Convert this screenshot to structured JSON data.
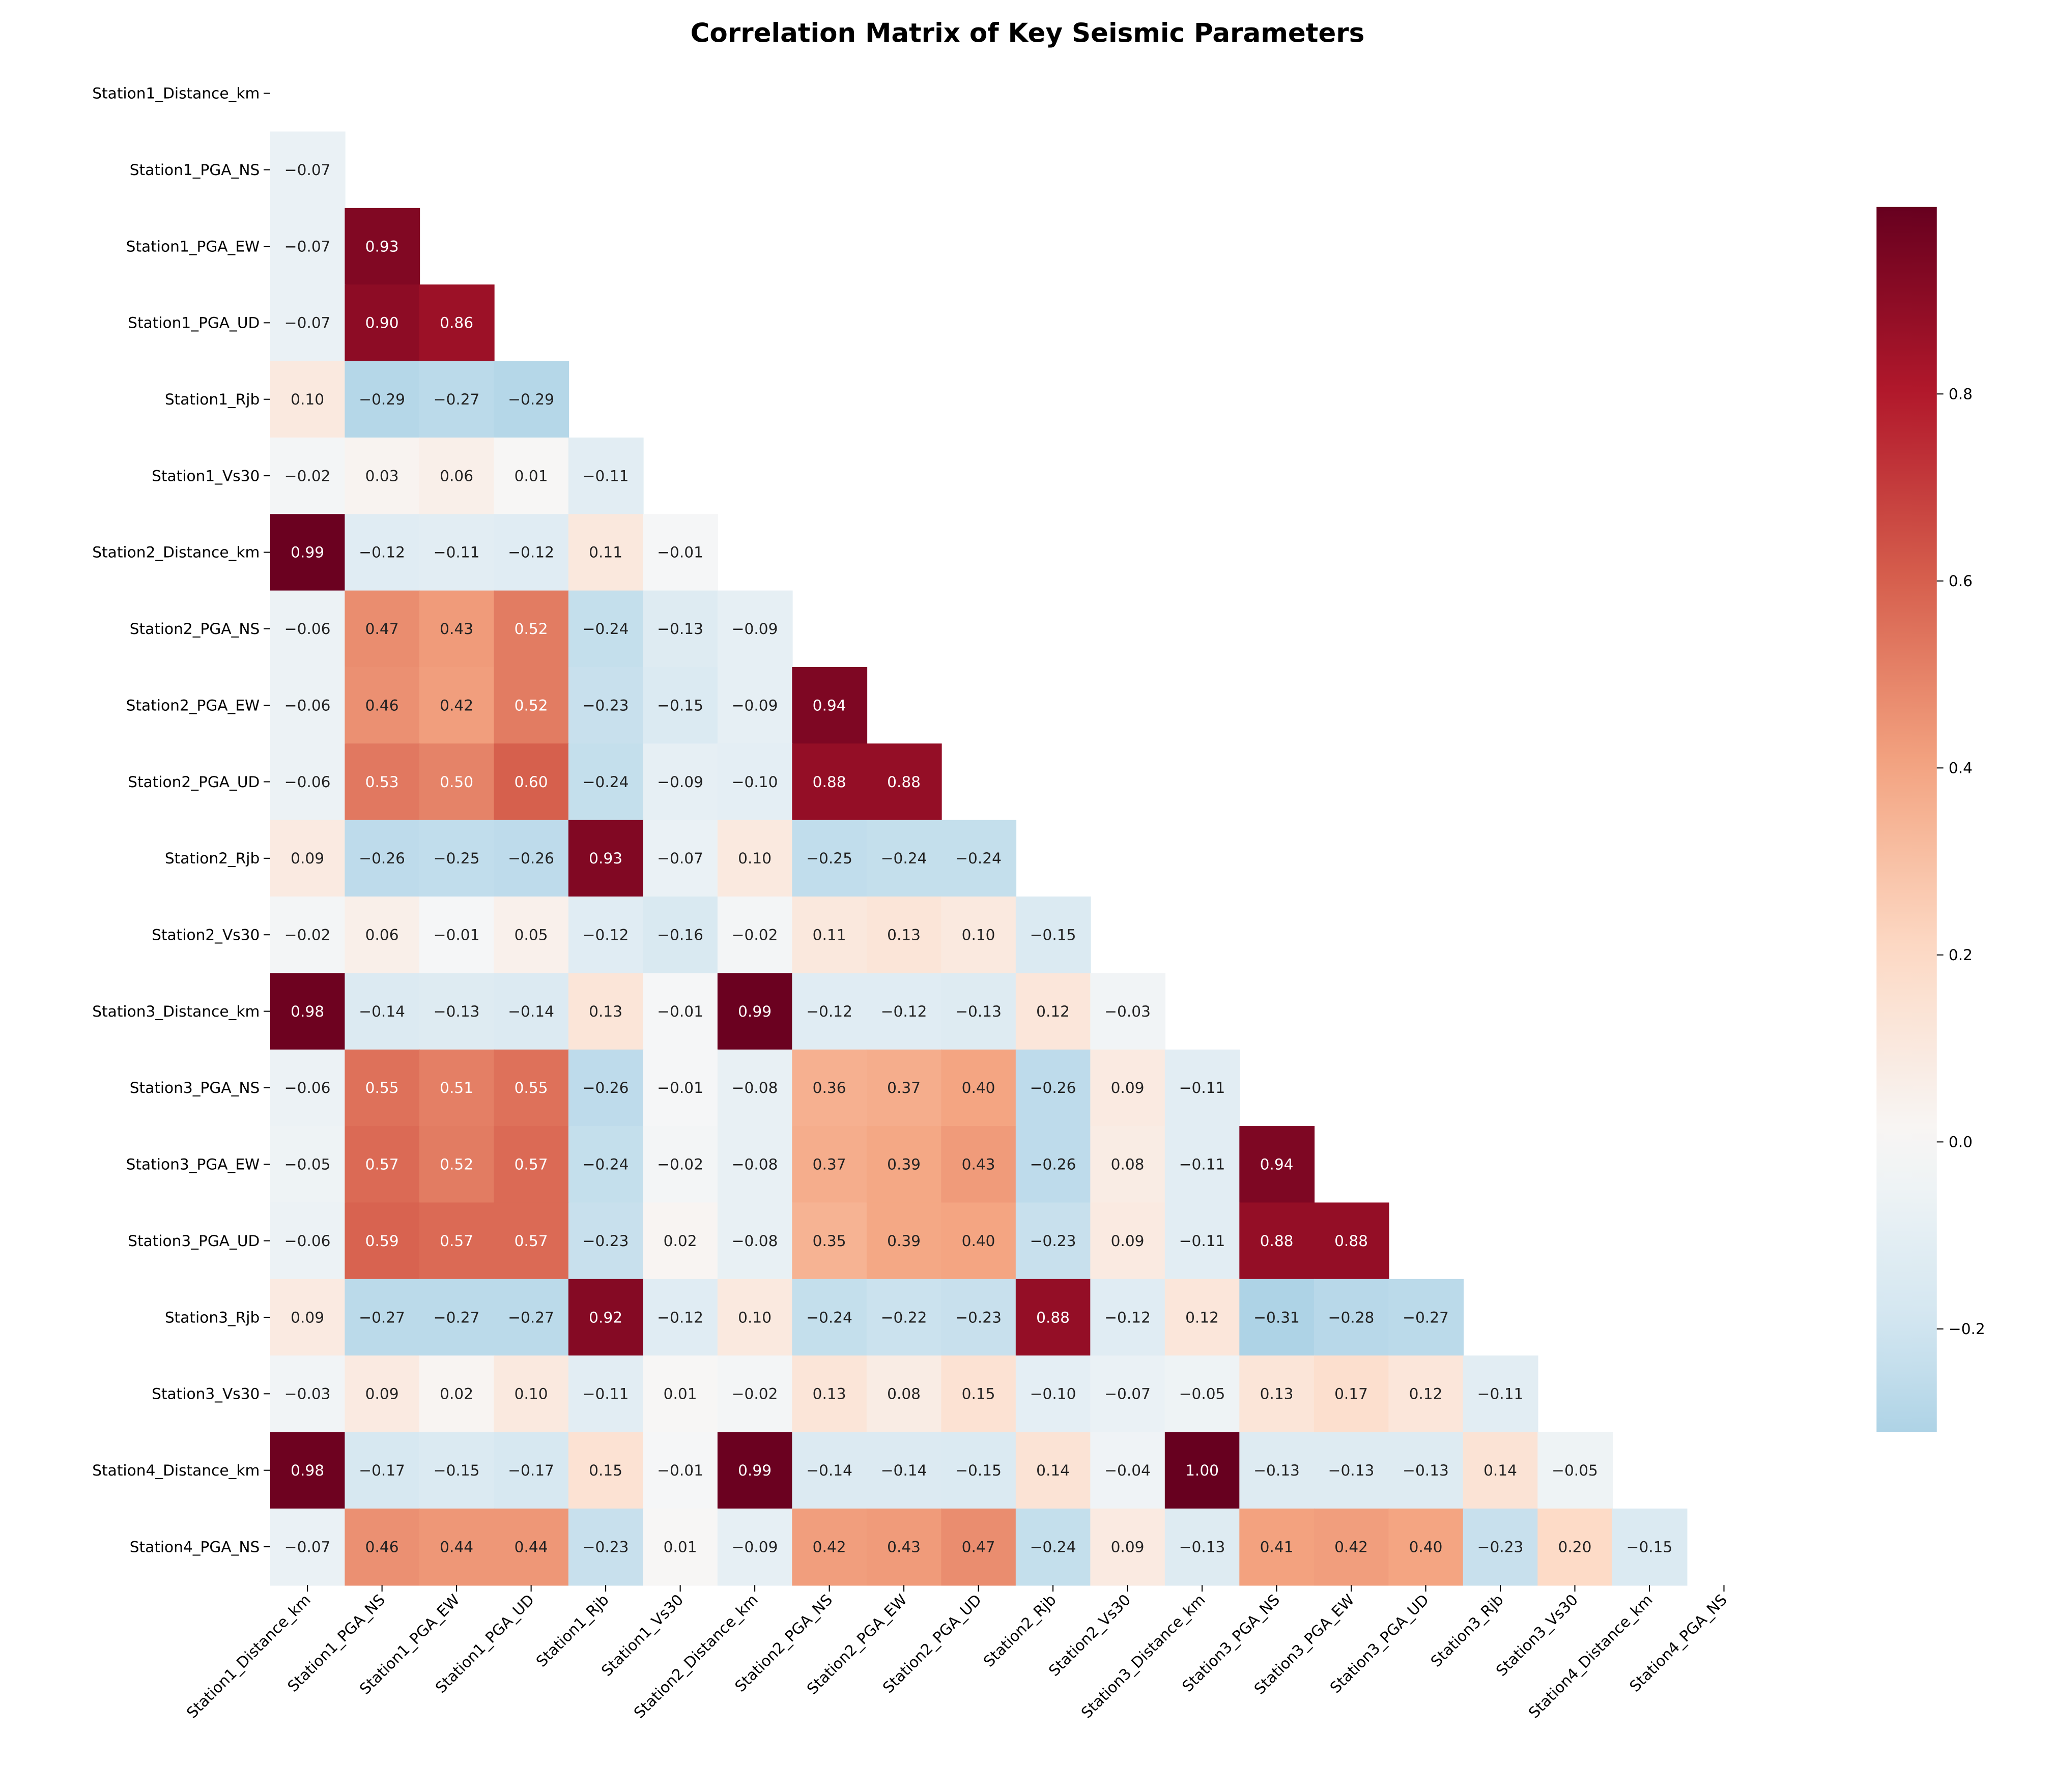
{
  "chart_data": {
    "type": "heatmap",
    "title": "Correlation Matrix of Key Seismic Parameters",
    "labels": [
      "Station1_Distance_km",
      "Station1_PGA_NS",
      "Station1_PGA_EW",
      "Station1_PGA_UD",
      "Station1_Rjb",
      "Station1_Vs30",
      "Station2_Distance_km",
      "Station2_PGA_NS",
      "Station2_PGA_EW",
      "Station2_PGA_UD",
      "Station2_Rjb",
      "Station2_Vs30",
      "Station3_Distance_km",
      "Station3_PGA_NS",
      "Station3_PGA_EW",
      "Station3_PGA_UD",
      "Station3_Rjb",
      "Station3_Vs30",
      "Station4_Distance_km",
      "Station4_PGA_NS"
    ],
    "mask": "upper triangle including diagonal",
    "lower_triangle": [
      [],
      [
        -0.07
      ],
      [
        -0.07,
        0.93
      ],
      [
        -0.07,
        0.9,
        0.86
      ],
      [
        0.1,
        -0.29,
        -0.27,
        -0.29
      ],
      [
        -0.02,
        0.03,
        0.06,
        0.01,
        -0.11
      ],
      [
        0.99,
        -0.12,
        -0.11,
        -0.12,
        0.11,
        -0.01
      ],
      [
        -0.06,
        0.47,
        0.43,
        0.52,
        -0.24,
        -0.13,
        -0.09
      ],
      [
        -0.06,
        0.46,
        0.42,
        0.52,
        -0.23,
        -0.15,
        -0.09,
        0.94
      ],
      [
        -0.06,
        0.53,
        0.5,
        0.6,
        -0.24,
        -0.09,
        -0.1,
        0.88,
        0.88
      ],
      [
        0.09,
        -0.26,
        -0.25,
        -0.26,
        0.93,
        -0.07,
        0.1,
        -0.25,
        -0.24,
        -0.24
      ],
      [
        -0.02,
        0.06,
        -0.01,
        0.05,
        -0.12,
        -0.16,
        -0.02,
        0.11,
        0.13,
        0.1,
        -0.15
      ],
      [
        0.98,
        -0.14,
        -0.13,
        -0.14,
        0.13,
        -0.01,
        0.99,
        -0.12,
        -0.12,
        -0.13,
        0.12,
        -0.03
      ],
      [
        -0.06,
        0.55,
        0.51,
        0.55,
        -0.26,
        -0.01,
        -0.08,
        0.36,
        0.37,
        0.4,
        -0.26,
        0.09,
        -0.11
      ],
      [
        -0.05,
        0.57,
        0.52,
        0.57,
        -0.24,
        -0.02,
        -0.08,
        0.37,
        0.39,
        0.43,
        -0.26,
        0.08,
        -0.11,
        0.94
      ],
      [
        -0.06,
        0.59,
        0.57,
        0.57,
        -0.23,
        0.02,
        -0.08,
        0.35,
        0.39,
        0.4,
        -0.23,
        0.09,
        -0.11,
        0.88,
        0.88
      ],
      [
        0.09,
        -0.27,
        -0.27,
        -0.27,
        0.92,
        -0.12,
        0.1,
        -0.24,
        -0.22,
        -0.23,
        0.88,
        -0.12,
        0.12,
        -0.31,
        -0.28,
        -0.27
      ],
      [
        -0.03,
        0.09,
        0.02,
        0.1,
        -0.11,
        0.01,
        -0.02,
        0.13,
        0.08,
        0.15,
        -0.1,
        -0.07,
        -0.05,
        0.13,
        0.17,
        0.12,
        -0.11
      ],
      [
        0.98,
        -0.17,
        -0.15,
        -0.17,
        0.15,
        -0.01,
        0.99,
        -0.14,
        -0.14,
        -0.15,
        0.14,
        -0.04,
        1.0,
        -0.13,
        -0.13,
        -0.13,
        0.14,
        -0.05
      ],
      [
        -0.07,
        0.46,
        0.44,
        0.44,
        -0.23,
        0.01,
        -0.09,
        0.42,
        0.43,
        0.47,
        -0.24,
        0.09,
        -0.13,
        0.41,
        0.42,
        0.4,
        -0.23,
        0.2,
        -0.15
      ]
    ],
    "colormap": "RdBu_r",
    "center": 0,
    "colorbar": {
      "range": [
        -0.31,
        1.0
      ],
      "ticks": [
        -0.2,
        0.0,
        0.2,
        0.4,
        0.6,
        0.8
      ],
      "tick_labels": [
        "−0.2",
        "0.0",
        "0.2",
        "0.4",
        "0.6",
        "0.8"
      ]
    },
    "value_format": "2 decimals",
    "legend": "colorbar right"
  }
}
